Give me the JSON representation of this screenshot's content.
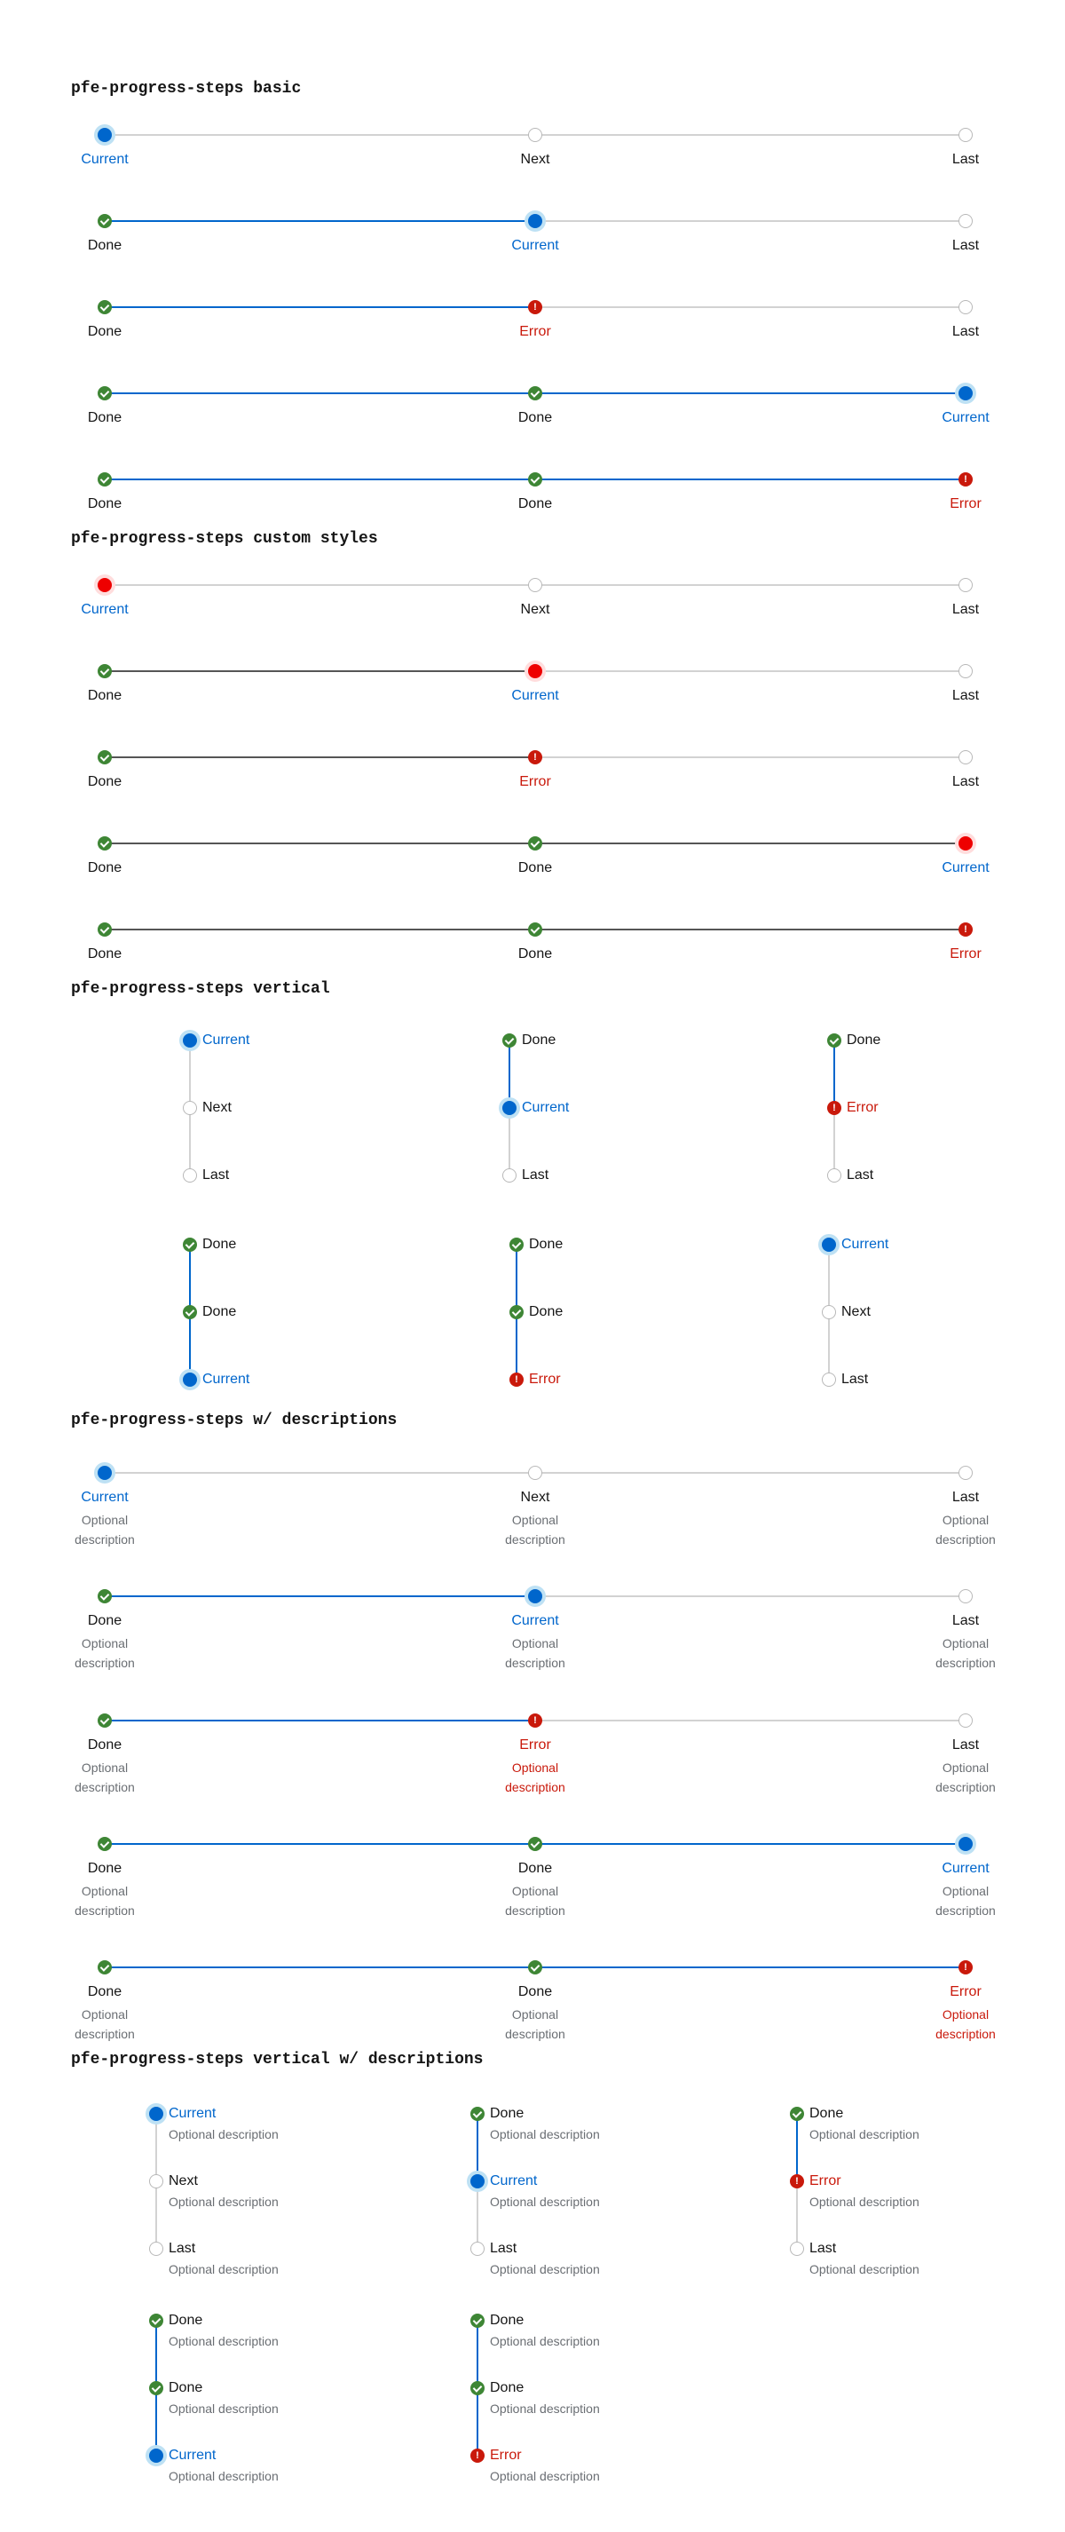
{
  "sections": {
    "basic": "pfe-progress-steps basic",
    "custom": "pfe-progress-steps custom styles",
    "vertical": "pfe-progress-steps vertical",
    "desc": "pfe-progress-steps w/ descriptions",
    "vdesc": "pfe-progress-steps vertical w/ descriptions"
  },
  "description": "Optional description",
  "description_parts": [
    "Optional",
    "description"
  ],
  "colors": {
    "current": "#0066cc",
    "done": "#3e8635",
    "error": "#c9190b",
    "pending": "#d2d2d2",
    "custom_current": "#ee0000"
  },
  "basic_rows": [
    [
      {
        "label": "Current",
        "state": "current"
      },
      {
        "label": "Next",
        "state": "pending"
      },
      {
        "label": "Last",
        "state": "pending"
      }
    ],
    [
      {
        "label": "Done",
        "state": "done"
      },
      {
        "label": "Current",
        "state": "current"
      },
      {
        "label": "Last",
        "state": "pending"
      }
    ],
    [
      {
        "label": "Done",
        "state": "done"
      },
      {
        "label": "Error",
        "state": "error"
      },
      {
        "label": "Last",
        "state": "pending"
      }
    ],
    [
      {
        "label": "Done",
        "state": "done"
      },
      {
        "label": "Done",
        "state": "done"
      },
      {
        "label": "Current",
        "state": "current"
      }
    ],
    [
      {
        "label": "Done",
        "state": "done"
      },
      {
        "label": "Done",
        "state": "done"
      },
      {
        "label": "Error",
        "state": "error"
      }
    ]
  ],
  "custom_rows": [
    [
      {
        "label": "Current",
        "state": "current"
      },
      {
        "label": "Next",
        "state": "pending"
      },
      {
        "label": "Last",
        "state": "pending"
      }
    ],
    [
      {
        "label": "Done",
        "state": "done"
      },
      {
        "label": "Current",
        "state": "current"
      },
      {
        "label": "Last",
        "state": "pending"
      }
    ],
    [
      {
        "label": "Done",
        "state": "done"
      },
      {
        "label": "Error",
        "state": "error"
      },
      {
        "label": "Last",
        "state": "pending"
      }
    ],
    [
      {
        "label": "Done",
        "state": "done"
      },
      {
        "label": "Done",
        "state": "done"
      },
      {
        "label": "Current",
        "state": "current"
      }
    ],
    [
      {
        "label": "Done",
        "state": "done"
      },
      {
        "label": "Done",
        "state": "done"
      },
      {
        "label": "Error",
        "state": "error"
      }
    ]
  ],
  "vertical_groups": [
    [
      {
        "label": "Current",
        "state": "current"
      },
      {
        "label": "Next",
        "state": "pending"
      },
      {
        "label": "Last",
        "state": "pending"
      }
    ],
    [
      {
        "label": "Done",
        "state": "done"
      },
      {
        "label": "Current",
        "state": "current"
      },
      {
        "label": "Last",
        "state": "pending"
      }
    ],
    [
      {
        "label": "Done",
        "state": "done"
      },
      {
        "label": "Error",
        "state": "error"
      },
      {
        "label": "Last",
        "state": "pending"
      }
    ],
    [
      {
        "label": "Done",
        "state": "done"
      },
      {
        "label": "Done",
        "state": "done"
      },
      {
        "label": "Current",
        "state": "current"
      }
    ],
    [
      {
        "label": "Done",
        "state": "done"
      },
      {
        "label": "Done",
        "state": "done"
      },
      {
        "label": "Error",
        "state": "error"
      }
    ],
    [
      {
        "label": "Current",
        "state": "current"
      },
      {
        "label": "Next",
        "state": "pending"
      },
      {
        "label": "Last",
        "state": "pending"
      }
    ]
  ],
  "desc_rows": [
    [
      {
        "label": "Current",
        "state": "current"
      },
      {
        "label": "Next",
        "state": "pending"
      },
      {
        "label": "Last",
        "state": "pending"
      }
    ],
    [
      {
        "label": "Done",
        "state": "done"
      },
      {
        "label": "Current",
        "state": "current"
      },
      {
        "label": "Last",
        "state": "pending"
      }
    ],
    [
      {
        "label": "Done",
        "state": "done"
      },
      {
        "label": "Error",
        "state": "error"
      },
      {
        "label": "Last",
        "state": "pending"
      }
    ],
    [
      {
        "label": "Done",
        "state": "done"
      },
      {
        "label": "Done",
        "state": "done"
      },
      {
        "label": "Current",
        "state": "current"
      }
    ],
    [
      {
        "label": "Done",
        "state": "done"
      },
      {
        "label": "Done",
        "state": "done"
      },
      {
        "label": "Error",
        "state": "error"
      }
    ]
  ],
  "vdesc_groups": [
    [
      {
        "label": "Current",
        "state": "current"
      },
      {
        "label": "Next",
        "state": "pending"
      },
      {
        "label": "Last",
        "state": "pending"
      }
    ],
    [
      {
        "label": "Done",
        "state": "done"
      },
      {
        "label": "Current",
        "state": "current"
      },
      {
        "label": "Last",
        "state": "pending"
      }
    ],
    [
      {
        "label": "Done",
        "state": "done"
      },
      {
        "label": "Error",
        "state": "error"
      },
      {
        "label": "Last",
        "state": "pending"
      }
    ],
    [
      {
        "label": "Done",
        "state": "done"
      },
      {
        "label": "Done",
        "state": "done"
      },
      {
        "label": "Current",
        "state": "current"
      }
    ],
    [
      {
        "label": "Done",
        "state": "done"
      },
      {
        "label": "Done",
        "state": "done"
      },
      {
        "label": "Error",
        "state": "error"
      }
    ]
  ]
}
